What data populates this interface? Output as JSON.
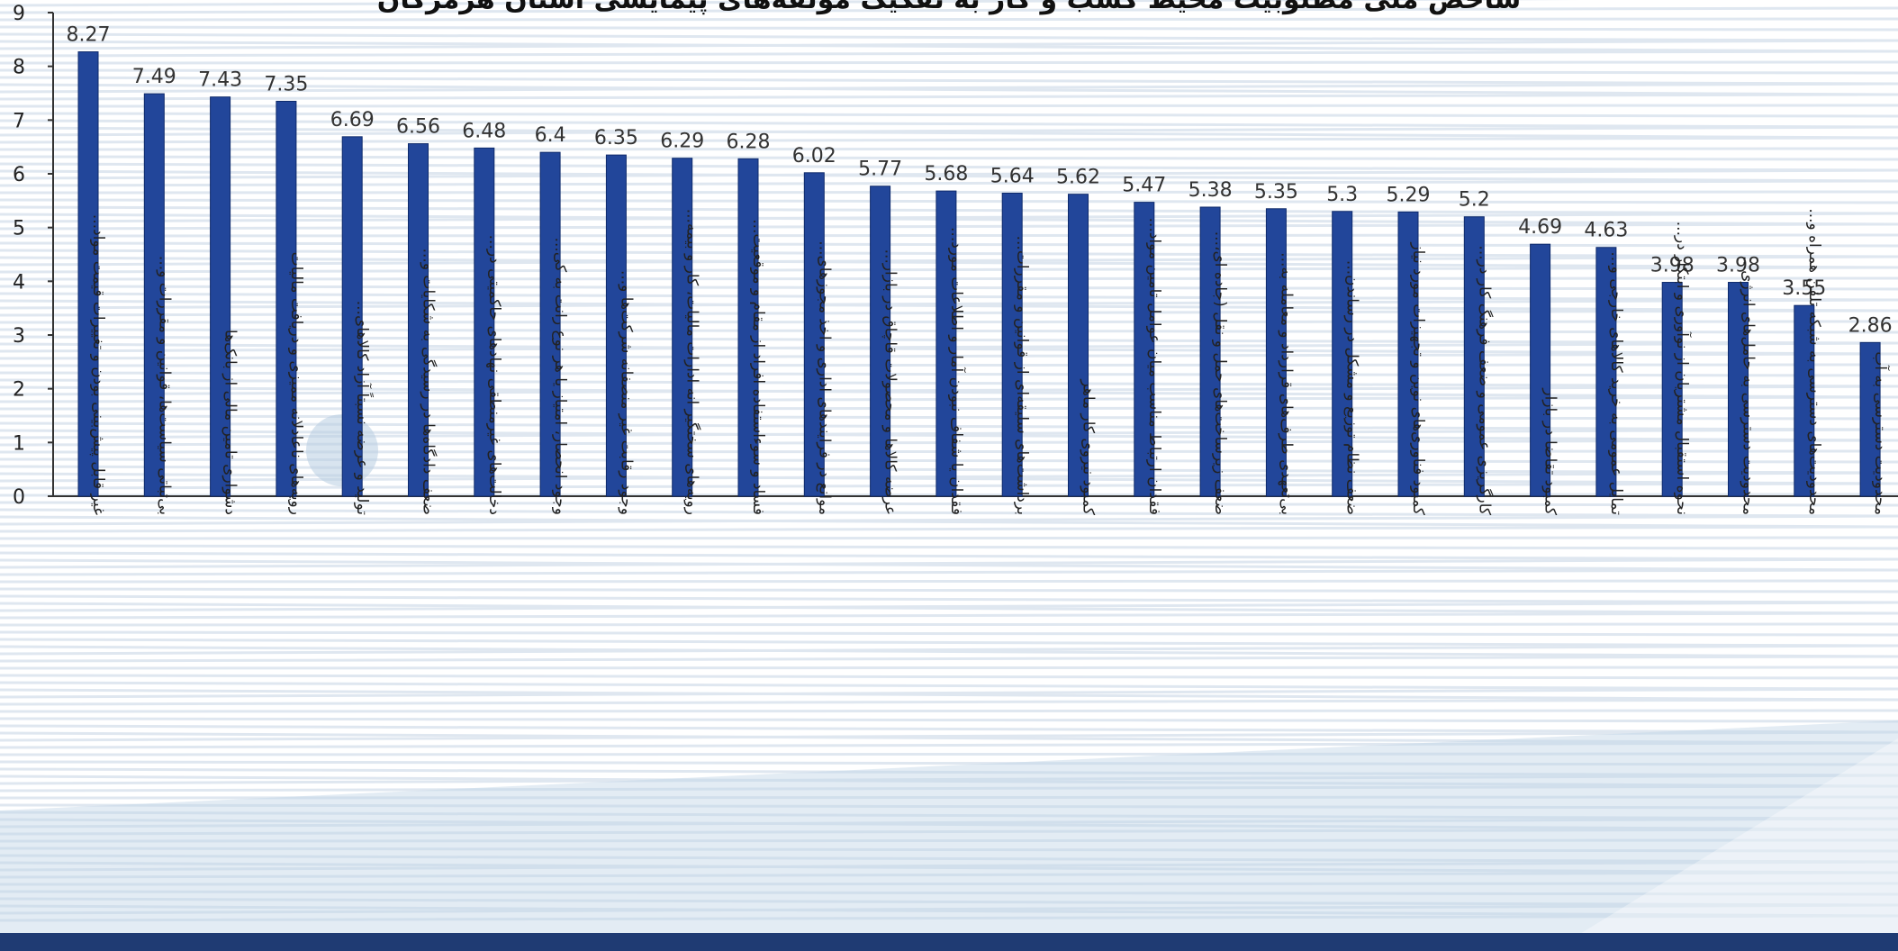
{
  "chart_data": {
    "type": "bar",
    "title": "شاخص ملی مطلوبیت محیط کسب و کار به تفکیک مؤلفه‌های پیمایشی استان هرمزگان",
    "ylim": [
      0,
      9
    ],
    "yticks": [
      "0",
      "1",
      "2",
      "3",
      "4",
      "5",
      "6",
      "7",
      "8",
      "9"
    ],
    "grid": false,
    "legend": "none",
    "bar_color": "#22469a",
    "categories": [
      "غیر قابل پیش‌بینی بودن و تغییرات قیمت مواد...",
      "بی‌ثباتی سیاست‌ها، قوانین و مقررات و...",
      "دشواری تامین مالی از بانک‌ها",
      "رویه‌های ناعادلانه ممیزی و دریافت مالیات",
      "تولید و عرضه نسبتاً آزاد کالاهای...",
      "ضعف دادگاه‌ها در رسیدگی به شکایات و...",
      "دخالت‌های غیرمنطقی نهادهای حاکمیتی در...",
      "وجود انحصار، امتیاز یا هر نوع رانت به کی...",
      "وجود رقابت غیر منصفانه شرکت‌ها و...",
      "رویه‌های سختگیر انه ادارات مالیات، کار و بیمه...",
      "فساد و سوءاستفاده افراد از مقام و موقعیت...",
      "موانع در فرایندهای اداری و اخذ مجوزهای...",
      "عرضه کالاها و محصولات قاچاق در بازار...",
      "فقدان یا شفاف نبودن آمار و اطلاعات مورد...",
      "برداشت‌های سلیقه‌ای از قوانین و مقررات...",
      "کمبود نیروی کار ماهر",
      "فقدان ارتباط مناسب میان عوامل تامین مواد...",
      "ضعف زیرساخت‌های حمل و نقل (جاده ای،...",
      "بی‌تعهدی طرف‌های قرارداد و معامله به...",
      "ضعف نظام توزیع و مشکل در رساندن...",
      "کمبود فناوری‌های نوین و تجهیزات مورد نیاز",
      "کارگریزی عمومی و ضعف فرهنگ کار در...",
      "کمبود تقاضا در بازار",
      "تمایل عمومی به خرید کالاهای خارجی و...",
      "نحوه استقبال مشتریان از نوآوری و ابتکار در...",
      "محدودیت دسترسی به حامل‌های انرژی...",
      "محدودیت‌های دسترسی به شبکه تلفن همراه و...",
      "محدودیت دسترسی به آب"
    ],
    "values": [
      8.27,
      7.49,
      7.43,
      7.35,
      6.69,
      6.56,
      6.48,
      6.4,
      6.35,
      6.29,
      6.28,
      6.02,
      5.77,
      5.68,
      5.64,
      5.62,
      5.47,
      5.38,
      5.35,
      5.3,
      5.29,
      5.2,
      4.69,
      4.63,
      3.98,
      3.98,
      3.55,
      2.86
    ],
    "value_labels": [
      "8.27",
      "7.49",
      "7.43",
      "7.35",
      "6.69",
      "6.56",
      "6.48",
      "6.4",
      "6.35",
      "6.29",
      "6.28",
      "6.02",
      "5.77",
      "5.68",
      "5.64",
      "5.62",
      "5.47",
      "5.38",
      "5.35",
      "5.3",
      "5.29",
      "5.2",
      "4.69",
      "4.63",
      "3.98",
      "3.98",
      "3.55",
      "2.86"
    ]
  }
}
